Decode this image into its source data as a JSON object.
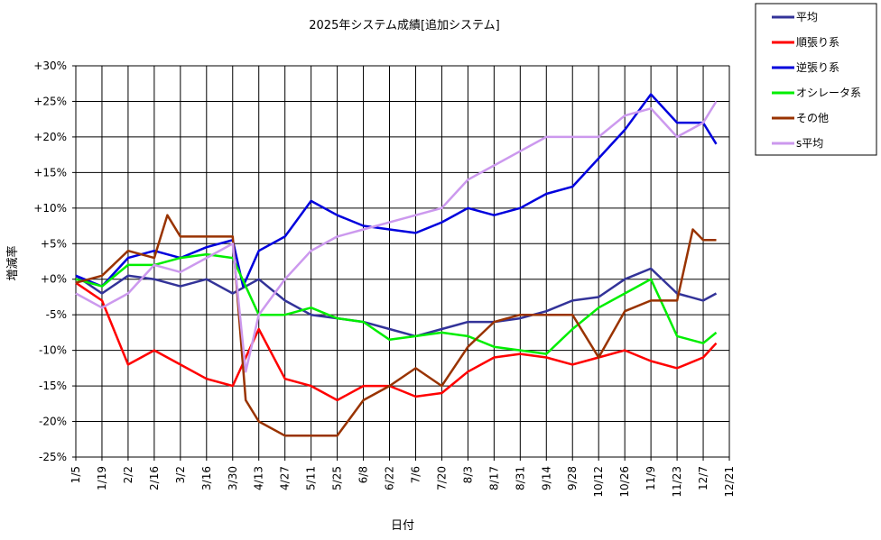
{
  "chart_data": {
    "type": "line",
    "title": "2025年システム成績[追加システム]",
    "xlabel": "日付",
    "ylabel": "増減率",
    "ylim": [
      -25,
      30
    ],
    "y_ticks": [
      30,
      25,
      20,
      15,
      10,
      5,
      0,
      -5,
      -10,
      -15,
      -20,
      -25
    ],
    "y_tick_labels": [
      "+30%",
      "+25%",
      "+20%",
      "+15%",
      "+10%",
      "+5%",
      "+0%",
      "-5%",
      "-10%",
      "-15%",
      "-20%",
      "-25%"
    ],
    "x_tick_labels": [
      "1/5",
      "1/19",
      "2/2",
      "2/16",
      "3/2",
      "3/16",
      "3/30",
      "4/13",
      "4/27",
      "5/11",
      "5/25",
      "6/8",
      "6/22",
      "7/6",
      "7/20",
      "8/3",
      "8/17",
      "8/31",
      "9/14",
      "9/28",
      "10/12",
      "10/26",
      "11/9",
      "11/23",
      "12/7",
      "12/21"
    ],
    "grid": true,
    "legend_position": "top-right",
    "series": [
      {
        "name": "平均",
        "color": "#333399",
        "x": [
          0,
          1,
          2,
          3,
          4,
          5,
          6,
          7,
          8,
          9,
          10,
          11,
          12,
          13,
          14,
          15,
          16,
          17,
          18,
          19,
          20,
          21,
          22,
          23,
          24,
          24.5
        ],
        "values": [
          0.5,
          -2,
          0.5,
          0,
          -1,
          0,
          -2,
          0,
          -3,
          -5,
          -5.5,
          -6,
          -7,
          -8,
          -7,
          -6,
          -6,
          -5.5,
          -4.5,
          -3,
          -2.5,
          0,
          1.5,
          -2,
          -3,
          -2
        ]
      },
      {
        "name": "順張り系",
        "color": "#ff0000",
        "x": [
          0,
          1,
          2,
          3,
          4,
          5,
          6,
          7,
          8,
          9,
          10,
          11,
          12,
          13,
          14,
          15,
          16,
          17,
          18,
          19,
          20,
          21,
          22,
          23,
          24,
          24.5
        ],
        "values": [
          -0.5,
          -3,
          -12,
          -10,
          -12,
          -14,
          -15,
          -7,
          -14,
          -15,
          -17,
          -15,
          -15,
          -16.5,
          -16,
          -13,
          -11,
          -10.5,
          -11,
          -12,
          -11,
          -10,
          -11.5,
          -12.5,
          -11,
          -9
        ]
      },
      {
        "name": "逆張り系",
        "color": "#0000dd",
        "x": [
          0,
          1,
          2,
          3,
          4,
          5,
          6,
          6.4,
          7,
          8,
          9,
          10,
          11,
          12,
          13,
          14,
          15,
          16,
          17,
          18,
          19,
          20,
          21,
          22,
          23,
          24,
          24.5
        ],
        "values": [
          0.5,
          -1,
          3,
          4,
          3,
          4.5,
          5.5,
          -1,
          4,
          6,
          11,
          9,
          7.5,
          7,
          6.5,
          8,
          10,
          9,
          10,
          12,
          13,
          17,
          21,
          26,
          22,
          22,
          19
        ]
      },
      {
        "name": "オシレータ系",
        "color": "#00ee00",
        "x": [
          0,
          1,
          2,
          3,
          4,
          5,
          6,
          7,
          8,
          9,
          10,
          11,
          12,
          13,
          14,
          15,
          16,
          17,
          18,
          19,
          20,
          21,
          22,
          23,
          24,
          24.5
        ],
        "values": [
          0,
          -1,
          2,
          2,
          3,
          3.5,
          3,
          -5,
          -5,
          -4,
          -5.5,
          -6,
          -8.5,
          -8,
          -7.5,
          -8,
          -9.5,
          -10,
          -10.5,
          -7,
          -4,
          -2,
          0,
          -8,
          -9,
          -7.5
        ]
      },
      {
        "name": "その他",
        "color": "#993300",
        "x": [
          0,
          1,
          2,
          3,
          3.5,
          4,
          5,
          6,
          6.5,
          7,
          8,
          9,
          10,
          11,
          12,
          13,
          14,
          15,
          16,
          17,
          18,
          19,
          20,
          21,
          22,
          23,
          23.6,
          24,
          24.5
        ],
        "values": [
          -0.5,
          0.5,
          4,
          3,
          9,
          6,
          6,
          6,
          -17,
          -20,
          -22,
          -22,
          -22,
          -17,
          -15,
          -12.5,
          -15,
          -9.5,
          -6,
          -5,
          -5,
          -5,
          -11,
          -4.5,
          -3,
          -3,
          7,
          5.5,
          5.5
        ]
      },
      {
        "name": "s平均",
        "color": "#cc99ee",
        "x": [
          0,
          1,
          2,
          3,
          4,
          5,
          6,
          6.5,
          7,
          8,
          9,
          10,
          11,
          12,
          13,
          14,
          15,
          16,
          17,
          18,
          19,
          20,
          21,
          22,
          23,
          24,
          24.5
        ],
        "values": [
          -2,
          -4,
          -2,
          2,
          1,
          3,
          5,
          -13,
          -5,
          0,
          4,
          6,
          7,
          8,
          9,
          10,
          14,
          16,
          18,
          20,
          20,
          20,
          23,
          24,
          20,
          22,
          25
        ]
      }
    ]
  }
}
